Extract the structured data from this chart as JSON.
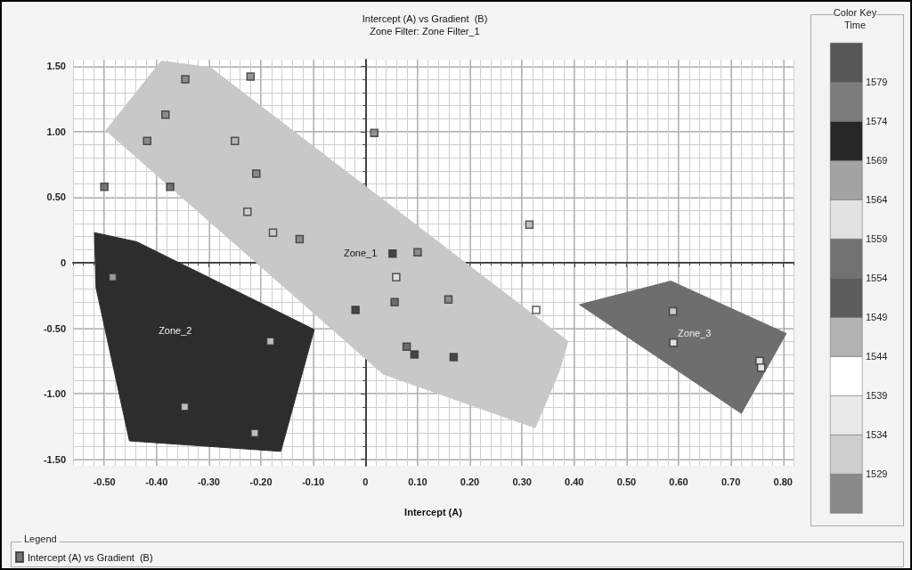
{
  "chart_data": {
    "type": "scatter",
    "title": "Intercept (A) vs Gradient  (B)",
    "subtitle": "Zone Filter: Zone Filter_1",
    "xlabel": "Intercept (A)",
    "legend_title": "Legend",
    "clabel": "Time",
    "xlim": [
      -0.56,
      0.82
    ],
    "ylim": [
      -1.55,
      1.55
    ],
    "xticks": [
      {
        "value": -0.5,
        "label": "-0.50"
      },
      {
        "value": -0.4,
        "label": "-0.40"
      },
      {
        "value": -0.3,
        "label": "-0.30"
      },
      {
        "value": -0.2,
        "label": "-0.20"
      },
      {
        "value": -0.1,
        "label": "-0.10"
      },
      0,
      {
        "value": 0.1,
        "label": "0.10"
      },
      {
        "value": 0.2,
        "label": "0.20"
      },
      {
        "value": 0.3,
        "label": "0.30"
      },
      {
        "value": 0.4,
        "label": "0.40"
      },
      {
        "value": 0.5,
        "label": "0.50"
      },
      {
        "value": 0.6,
        "label": "0.60"
      },
      {
        "value": 0.7,
        "label": "0.70"
      },
      {
        "value": 0.8,
        "label": "0.80"
      }
    ],
    "yticks": [
      {
        "value": -1.5,
        "label": "-1.50"
      },
      {
        "value": -1,
        "label": "-1.00"
      },
      {
        "value": -0.5,
        "label": "-0.50"
      },
      0,
      {
        "value": 0.5,
        "label": "0.50"
      },
      {
        "value": 1,
        "label": "1.00"
      },
      {
        "value": 1.5,
        "label": "1.50"
      }
    ],
    "clim": [
      1524,
      1584
    ],
    "cticks": [
      1529,
      1534,
      1539,
      1544,
      1549,
      1554,
      1559,
      1564,
      1569,
      1574,
      1579
    ],
    "grid": true,
    "legend": "bottom left",
    "annotations": [
      "Color Key"
    ],
    "series": [
      {
        "type": "area",
        "name": "Zone_1",
        "color": "#c8c8c8",
        "x": [
          -0.497,
          -0.391,
          -0.297,
          0.388,
          0.371,
          0.325,
          0.034
        ],
        "values": [
          1.01,
          1.54,
          1.49,
          -0.6,
          -0.83,
          -1.26,
          -0.85
        ]
      },
      {
        "type": "area",
        "name": "Zone_2",
        "color": "#2d2d2d",
        "x": [
          -0.519,
          -0.438,
          -0.098,
          -0.162,
          -0.452,
          -0.516
        ],
        "values": [
          0.23,
          0.16,
          -0.51,
          -1.44,
          -1.36,
          -0.19
        ]
      },
      {
        "type": "area",
        "name": "Zone_3",
        "color": "#6e6e6e",
        "x": [
          0.41,
          0.585,
          0.806,
          0.72
        ],
        "values": [
          -0.32,
          -0.14,
          -0.54,
          -1.15
        ]
      },
      {
        "name": "Intercept (A) vs Gradient  (B)",
        "color": "#555555",
        "marker": "square",
        "x": [
          -0.345,
          -0.22,
          -0.383,
          -0.418,
          -0.25,
          -0.5,
          -0.374,
          -0.209,
          -0.226,
          -0.177,
          -0.126,
          0.017,
          0.052,
          0.1,
          0.059,
          0.056,
          -0.019,
          0.159,
          0.079,
          0.094,
          0.169,
          0.314,
          0.327,
          -0.484,
          -0.182,
          -0.346,
          -0.212,
          0.589,
          0.59,
          0.755,
          0.758
        ],
        "values": [
          1.4,
          1.42,
          1.13,
          0.93,
          0.93,
          0.58,
          0.58,
          0.68,
          0.39,
          0.23,
          0.18,
          0.99,
          0.07,
          0.08,
          -0.11,
          -0.3,
          -0.36,
          -0.28,
          -0.64,
          -0.7,
          -0.72,
          0.29,
          -0.36,
          -0.11,
          -0.6,
          -1.1,
          -1.3,
          -0.37,
          -0.61,
          -0.75,
          -0.8
        ],
        "cvalues": [
          1576,
          1576,
          1576,
          1576,
          1546,
          1581,
          1581,
          1576,
          1531,
          1531,
          1576,
          1576,
          1571,
          1576,
          1561,
          1581,
          1571,
          1576,
          1581,
          1571,
          1571,
          1546,
          1541,
          1546,
          1561,
          1561,
          1561,
          1561,
          1541,
          1541,
          1541
        ]
      }
    ]
  }
}
